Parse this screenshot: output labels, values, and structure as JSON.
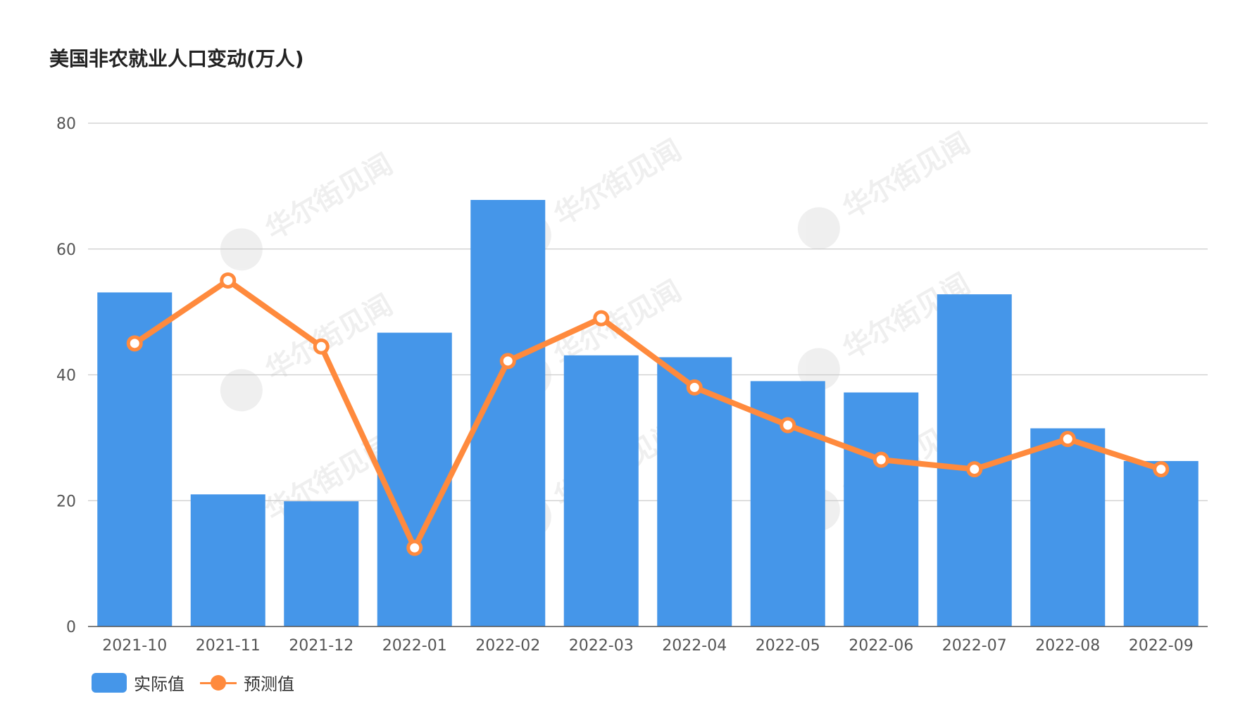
{
  "title": "美国非农就业人口变动(万人)",
  "watermark": "华尔街见闻",
  "colors": {
    "bar": "#4596E9",
    "line": "#FF8A3D",
    "grid": "#cccccc",
    "axis": "#555555"
  },
  "legend": {
    "bar_label": "实际值",
    "line_label": "预测值"
  },
  "chart_data": {
    "type": "bar",
    "title": "美国非农就业人口变动(万人)",
    "categories": [
      "2021-10",
      "2021-11",
      "2021-12",
      "2022-01",
      "2022-02",
      "2022-03",
      "2022-04",
      "2022-05",
      "2022-06",
      "2022-07",
      "2022-08",
      "2022-09"
    ],
    "series": [
      {
        "name": "实际值",
        "type": "bar",
        "values": [
          53.1,
          21.0,
          19.9,
          46.7,
          67.8,
          43.1,
          42.8,
          39.0,
          37.2,
          52.8,
          31.5,
          26.3
        ]
      },
      {
        "name": "预测值",
        "type": "line",
        "values": [
          45.0,
          55.0,
          44.5,
          12.5,
          42.2,
          49.0,
          38.0,
          32.0,
          26.5,
          25.0,
          29.8,
          25.0
        ]
      }
    ],
    "yticks": [
      0,
      20,
      40,
      60,
      80
    ],
    "ylim": [
      0,
      80
    ],
    "xlabel": "",
    "ylabel": "",
    "grid": true,
    "legend_position": "bottom-left"
  }
}
